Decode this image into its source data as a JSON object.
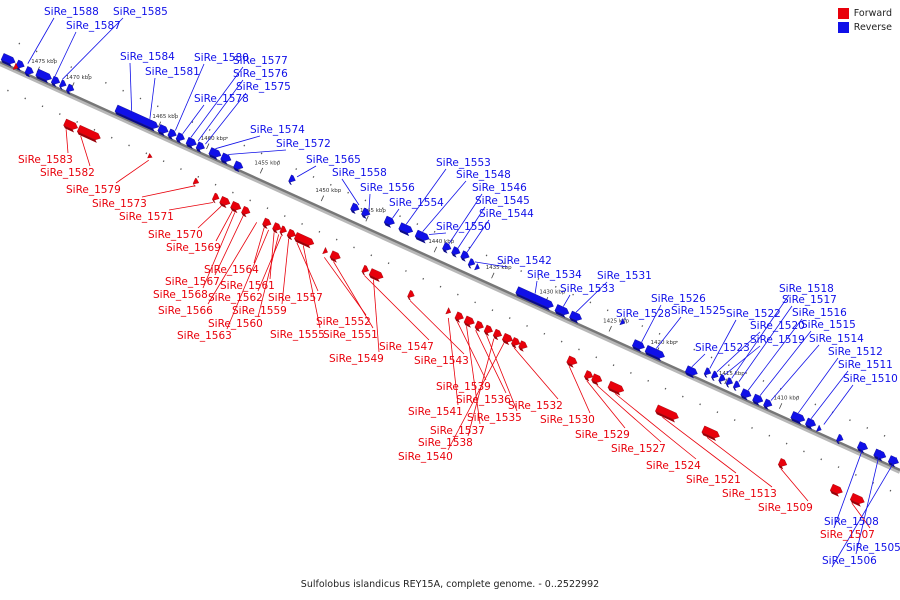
{
  "title": "Sulfolobus islandicus REY15A, complete genome. - 0..2522992",
  "legend": {
    "forward_label": "Forward",
    "reverse_label": "Reverse",
    "forward_color": "#e8000b",
    "reverse_color": "#1010e8"
  },
  "kbp_ticks": [
    {
      "label": "1475 kbp",
      "kbp": 1475
    },
    {
      "label": "1470 kbp",
      "kbp": 1470
    },
    {
      "label": "1465 kbp",
      "kbp": 1465
    },
    {
      "label": "1460 kbp",
      "kbp": 1460
    },
    {
      "label": "1455 kbp",
      "kbp": 1455
    },
    {
      "label": "1450 kbp",
      "kbp": 1450
    },
    {
      "label": "1445 kbp",
      "kbp": 1445
    },
    {
      "label": "1440 kbp",
      "kbp": 1440
    },
    {
      "label": "1435 kbp",
      "kbp": 1435
    },
    {
      "label": "1430 kbp",
      "kbp": 1430
    },
    {
      "label": "1425 kbp",
      "kbp": 1425
    },
    {
      "label": "1420 kbp",
      "kbp": 1420
    },
    {
      "label": "1415 kbp",
      "kbp": 1415
    },
    {
      "label": "1410 kbp",
      "kbp": 1410
    }
  ],
  "reverse_genes": [
    "SiRe_1588",
    "SiRe_1585",
    "SiRe_1587",
    "SiRe_1584",
    "SiRe_1581",
    "SiRe_1580",
    "SiRe_1577",
    "SiRe_1576",
    "SiRe_1575",
    "SiRe_1578",
    "SiRe_1574",
    "SiRe_1572",
    "SiRe_1565",
    "SiRe_1558",
    "SiRe_1556",
    "SiRe_1554",
    "SiRe_1553",
    "SiRe_1548",
    "SiRe_1546",
    "SiRe_1545",
    "SiRe_1544",
    "SiRe_1550",
    "SiRe_1542",
    "SiRe_1534",
    "SiRe_1533",
    "SiRe_1531",
    "SiRe_1528",
    "SiRe_1526",
    "SiRe_1525",
    "SiRe_1522",
    "SiRe_1520",
    "SiRe_1519",
    "SiRe_1523",
    "SiRe_1518",
    "SiRe_1517",
    "SiRe_1516",
    "SiRe_1515",
    "SiRe_1514",
    "SiRe_1512",
    "SiRe_1511",
    "SiRe_1510",
    "SiRe_1508",
    "SiRe_1505",
    "SiRe_1506"
  ],
  "forward_genes": [
    "SiRe_1583",
    "SiRe_1582",
    "SiRe_1579",
    "SiRe_1573",
    "SiRe_1571",
    "SiRe_1570",
    "SiRe_1569",
    "SiRe_1564",
    "SiRe_1567",
    "SiRe_1561",
    "SiRe_1568",
    "SiRe_1562",
    "SiRe_1557",
    "SiRe_1566",
    "SiRe_1559",
    "SiRe_1560",
    "SiRe_1563",
    "SiRe_1552",
    "SiRe_1555",
    "SiRe_1551",
    "SiRe_1547",
    "SiRe_1549",
    "SiRe_1543",
    "SiRe_1539",
    "SiRe_1536",
    "SiRe_1541",
    "SiRe_1537",
    "SiRe_1535",
    "SiRe_1538",
    "SiRe_1540",
    "SiRe_1532",
    "SiRe_1530",
    "SiRe_1529",
    "SiRe_1527",
    "SiRe_1524",
    "SiRe_1521",
    "SiRe_1513",
    "SiRe_1509",
    "SiRe_1507"
  ]
}
